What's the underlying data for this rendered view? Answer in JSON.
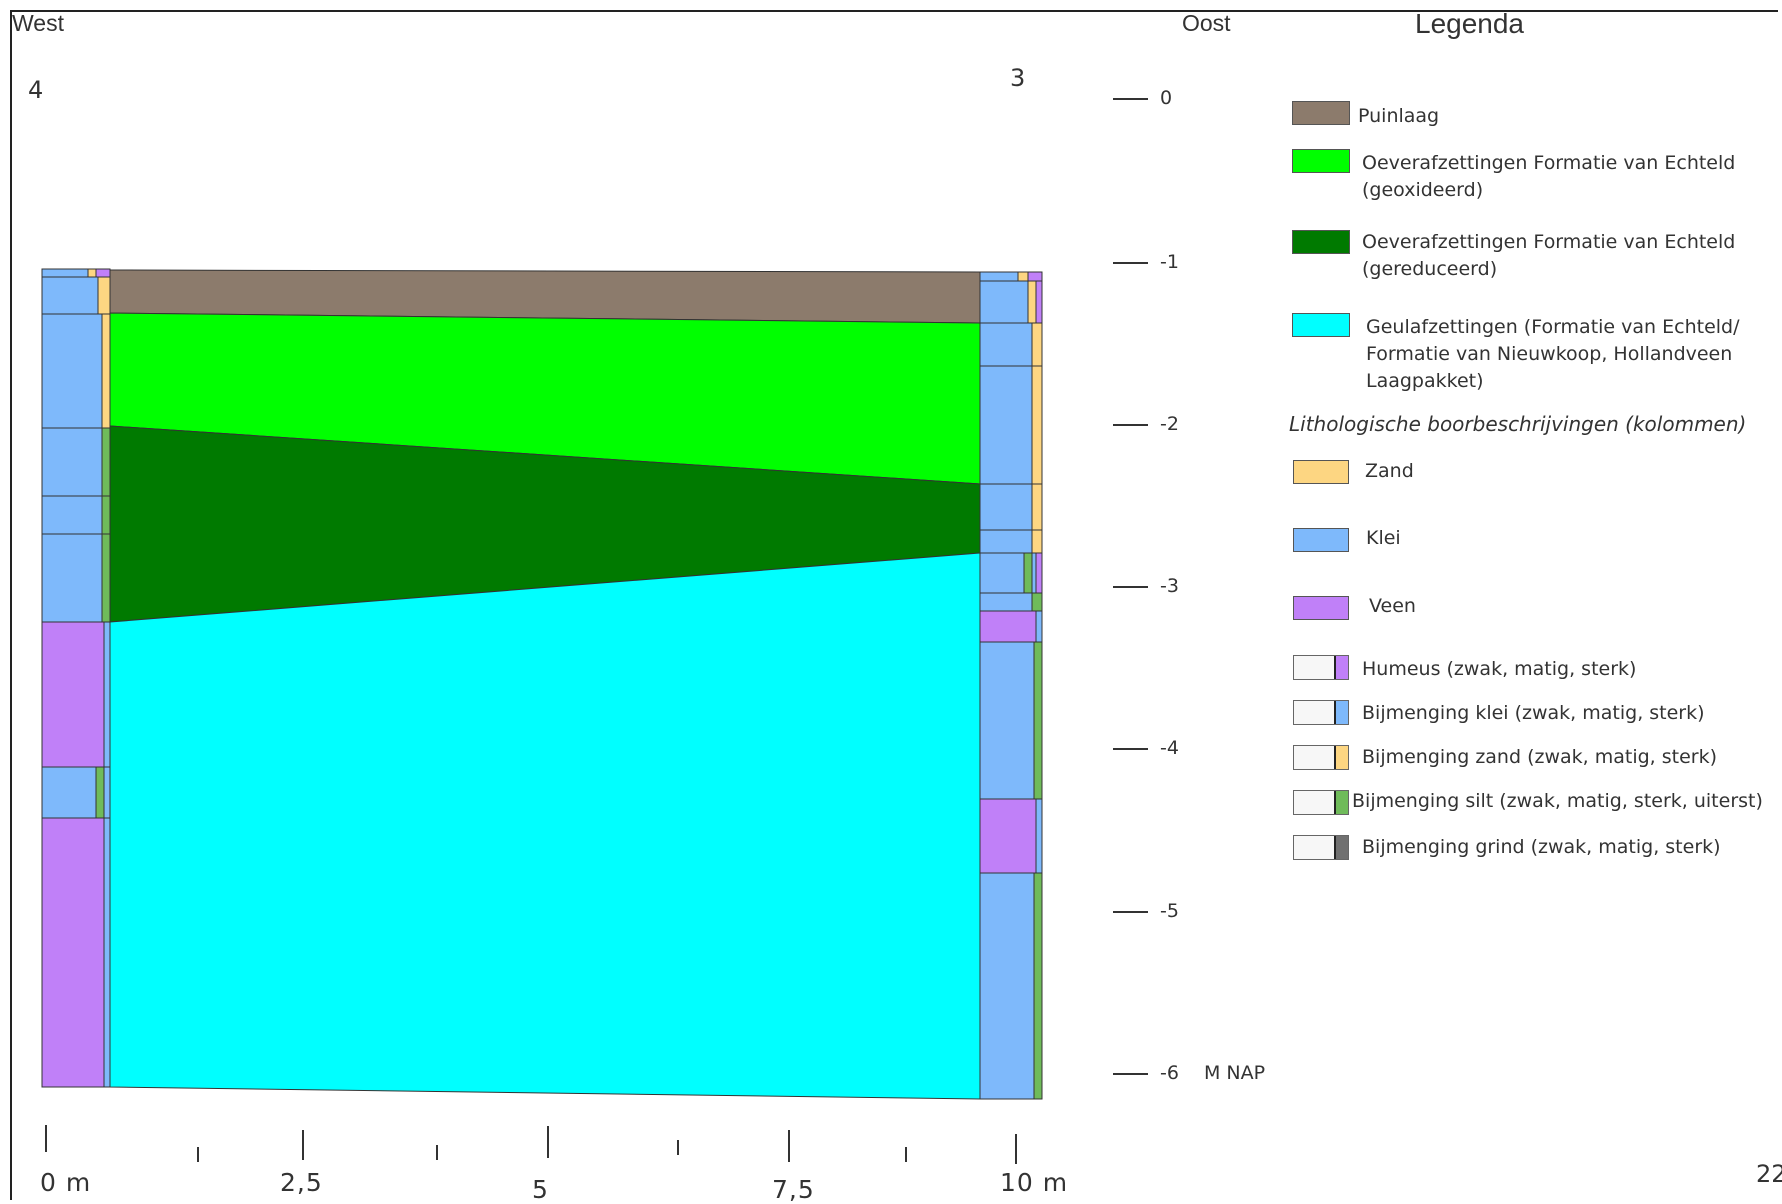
{
  "header": {
    "west_label": "West",
    "east_label": "Oost",
    "page_number": "22"
  },
  "boreholes": [
    {
      "number": "4",
      "side": "west"
    },
    {
      "number": "3",
      "side": "east"
    }
  ],
  "depth_axis": {
    "unit_label": "M NAP",
    "ticks": [
      "0",
      "-1",
      "-2",
      "-3",
      "-4",
      "-5",
      "-6"
    ]
  },
  "distance_axis": {
    "tick_labels": [
      "0 m",
      "2,5",
      "5",
      "7,5",
      "10 m"
    ]
  },
  "colors": {
    "puinlaag": "#8c7b6c",
    "oever_geoxideerd": "#00ff00",
    "oever_gereduceerd": "#007a00",
    "geul": "#00ffff",
    "zand": "#fdd682",
    "klei": "#7eb9fb",
    "veen": "#c080f8",
    "silt": "#6fbb5a",
    "grind": "#707070"
  },
  "legend": {
    "title": "Legenda",
    "units": [
      {
        "key": "puinlaag",
        "label": "Puinlaag"
      },
      {
        "key": "oever_geoxideerd",
        "label": "Oeverafzettingen Formatie van Echteld\n(geoxideerd)"
      },
      {
        "key": "oever_gereduceerd",
        "label": "Oeverafzettingen Formatie van Echteld\n(gereduceerd)"
      },
      {
        "key": "geul",
        "label": "Geulafzettingen (Formatie van Echteld/\nFormatie van Nieuwkoop, Hollandveen\nLaagpakket)"
      }
    ],
    "litho_heading": "Lithologische boorbeschrijvingen (kolommen)",
    "lithology": [
      {
        "key": "zand",
        "label": "Zand"
      },
      {
        "key": "klei",
        "label": "Klei"
      },
      {
        "key": "veen",
        "label": "Veen"
      }
    ],
    "admixtures": [
      {
        "key": "veen",
        "label": "Humeus (zwak, matig, sterk)"
      },
      {
        "key": "klei",
        "label": "Bijmenging klei (zwak, matig, sterk)"
      },
      {
        "key": "zand",
        "label": "Bijmenging zand (zwak, matig, sterk)"
      },
      {
        "key": "silt",
        "label": "Bijmenging silt (zwak, matig, sterk, uiterst)"
      },
      {
        "key": "grind",
        "label": "Bijmenging grind (zwak, matig, sterk)"
      }
    ]
  }
}
